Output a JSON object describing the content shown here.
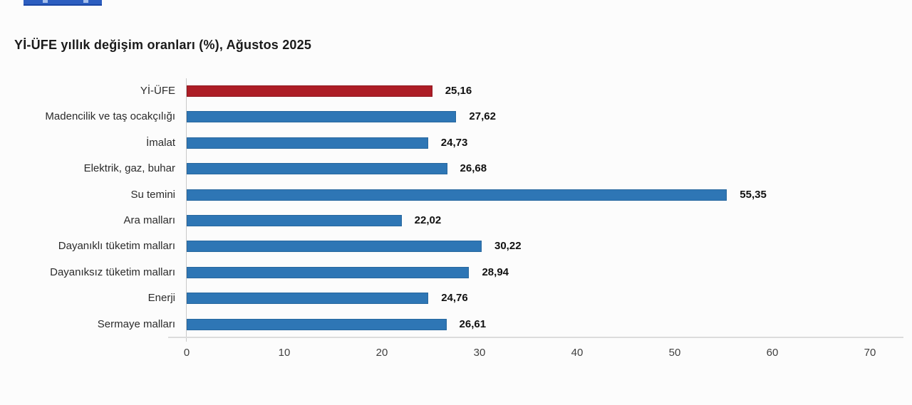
{
  "title_bar": {
    "note_colors": {
      "banner_fill": "#2d5ec0",
      "banner_border": "#1a47a5"
    }
  },
  "chart_data": {
    "type": "bar",
    "orientation": "horizontal",
    "title": "Yİ-ÜFE yıllık değişim oranları (%), Ağustos 2025",
    "categories": [
      "Yİ-ÜFE",
      "Madencilik ve taş ocakçılığı",
      "İmalat",
      "Elektrik, gaz, buhar",
      "Su temini",
      "Ara malları",
      "Dayanıklı tüketim malları",
      "Dayanıksız tüketim malları",
      "Enerji",
      "Sermaye malları"
    ],
    "values": [
      25.16,
      27.62,
      24.73,
      26.68,
      55.35,
      22.02,
      30.22,
      28.94,
      24.76,
      26.61
    ],
    "value_labels": [
      "25,16",
      "27,62",
      "24,73",
      "26,68",
      "55,35",
      "22,02",
      "30,22",
      "28,94",
      "24,76",
      "26,61"
    ],
    "highlight_index": 0,
    "bar_colors": {
      "highlight": "#ad1d26",
      "default": "#2e76b5"
    },
    "xlabel": "",
    "ylabel": "",
    "xlim": [
      0,
      70
    ],
    "x_ticks": [
      0,
      10,
      20,
      30,
      40,
      50,
      60,
      70
    ],
    "grid": false,
    "legend": "none"
  }
}
